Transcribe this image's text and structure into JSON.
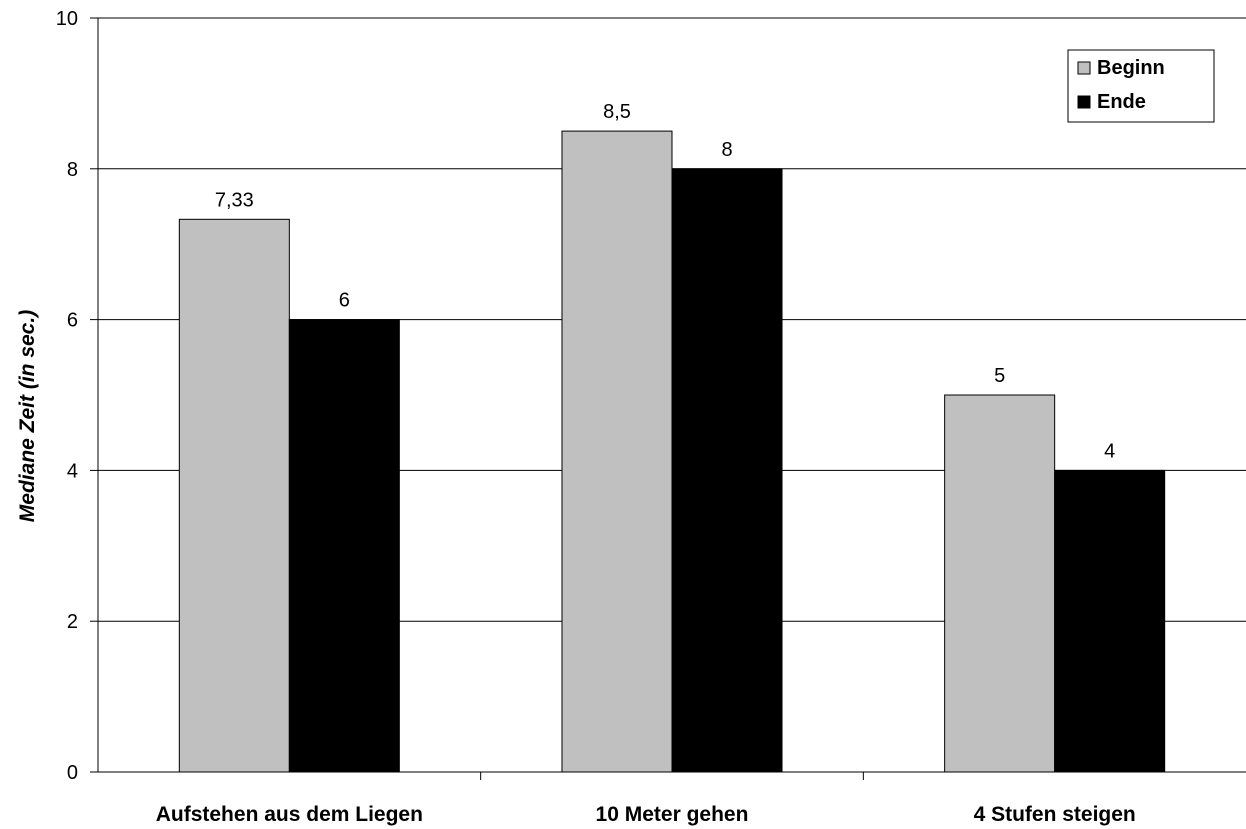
{
  "chart_data": {
    "type": "bar",
    "title": "",
    "xlabel": "",
    "ylabel": "Mediane Zeit (in sec.)",
    "ylim": [
      0,
      10
    ],
    "yticks": [
      0,
      2,
      4,
      6,
      8,
      10
    ],
    "grid": true,
    "legend_position": "top-right",
    "categories": [
      "Aufstehen aus dem Liegen",
      "10 Meter gehen",
      "4 Stufen steigen"
    ],
    "series": [
      {
        "name": "Beginn",
        "values": [
          7.33,
          8.5,
          5
        ],
        "labels": [
          "7,33",
          "8,5",
          "5"
        ],
        "color": "#c0c0c0"
      },
      {
        "name": "Ende",
        "values": [
          6,
          8,
          4
        ],
        "labels": [
          "6",
          "8",
          "4"
        ],
        "color": "#000000"
      }
    ]
  }
}
